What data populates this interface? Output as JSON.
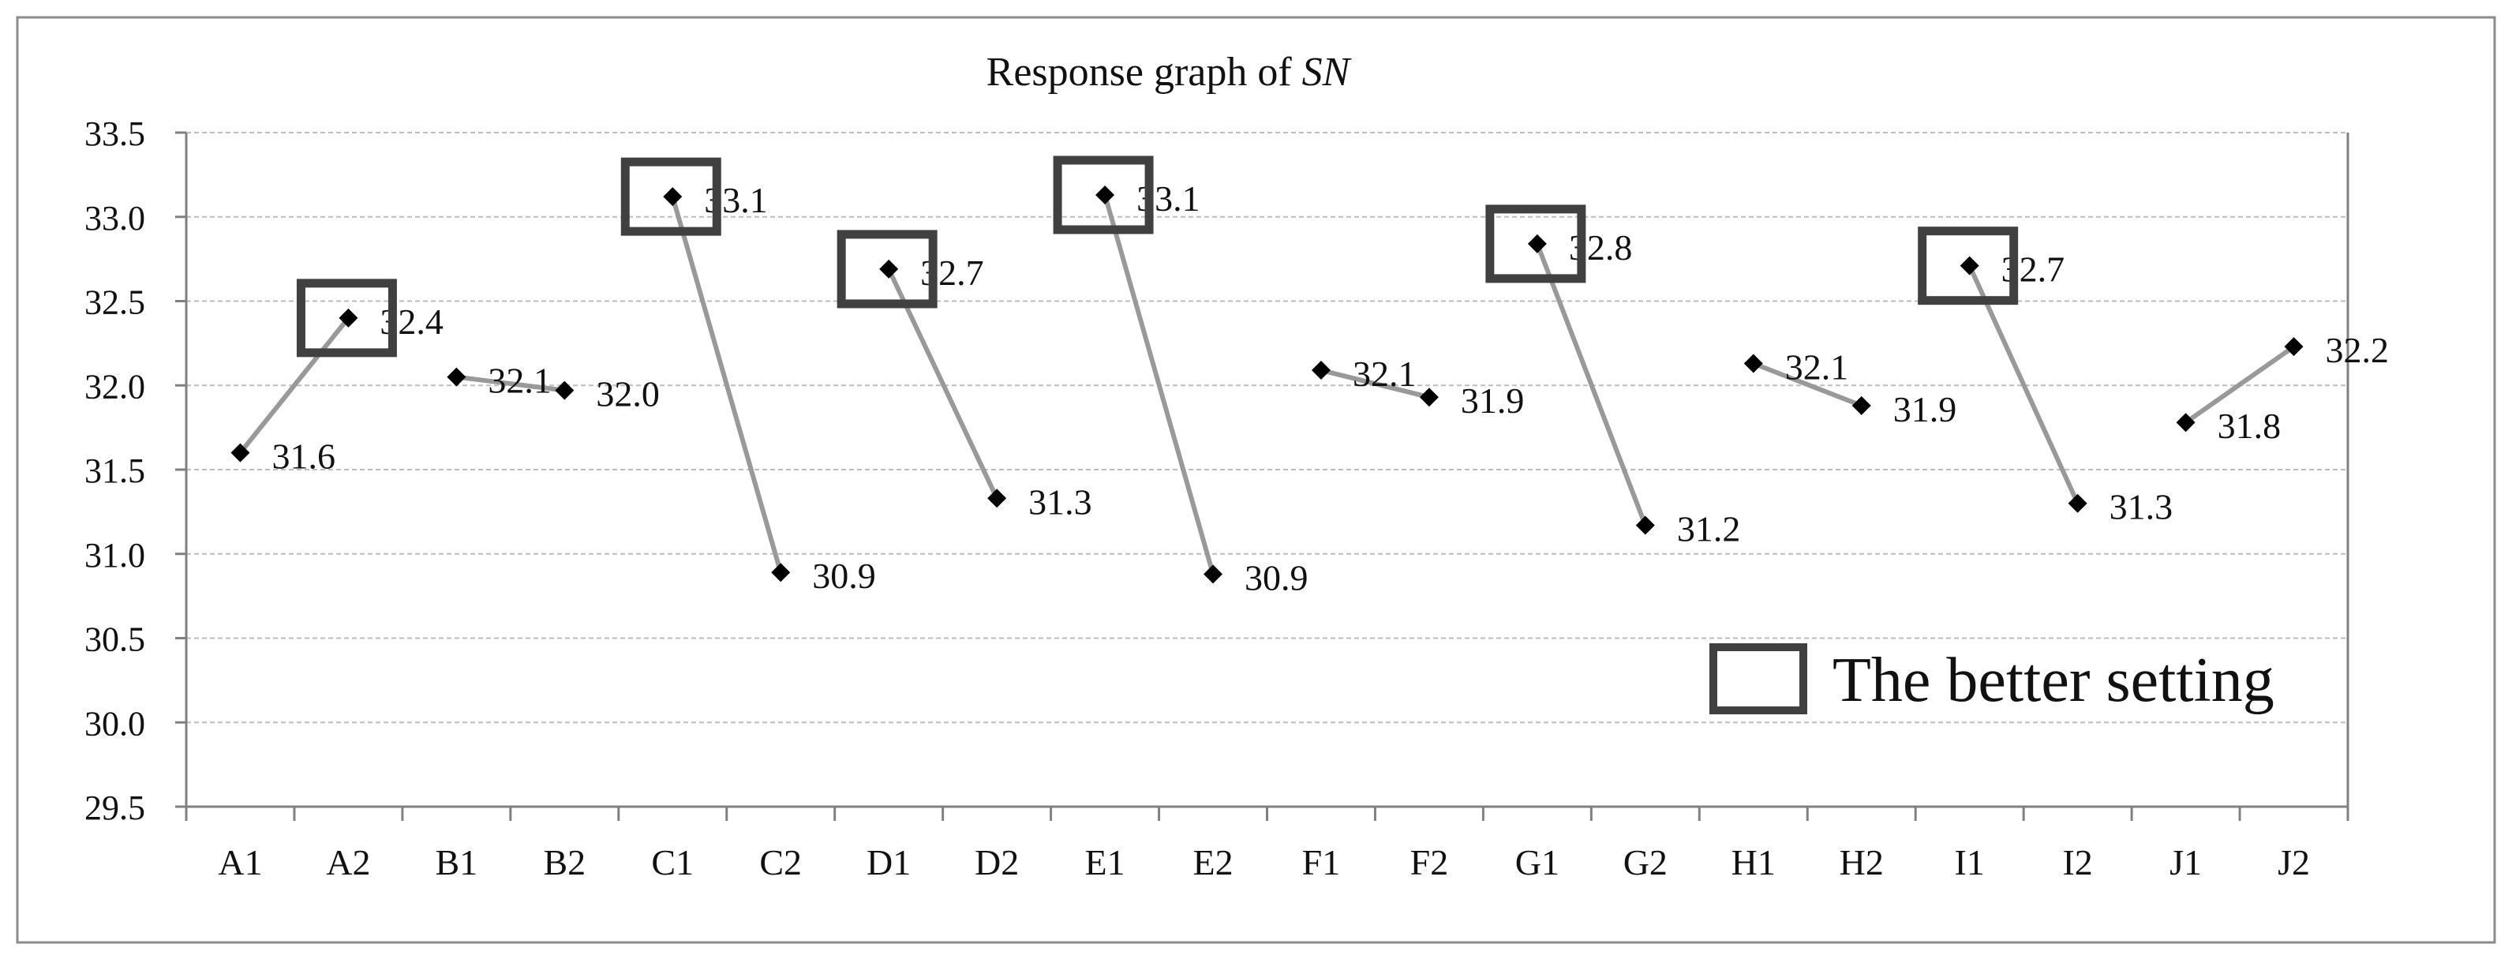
{
  "chart_data": {
    "type": "line",
    "title_prefix": "Response graph of ",
    "title_italic": "SN",
    "xlabel": "",
    "ylabel": "",
    "ylim": [
      29.5,
      33.5
    ],
    "yticks": [
      "29.5",
      "30.0",
      "30.5",
      "31.0",
      "31.5",
      "32.0",
      "32.5",
      "33.0",
      "33.5"
    ],
    "categories": [
      "A1",
      "A2",
      "B1",
      "B2",
      "C1",
      "C2",
      "D1",
      "D2",
      "E1",
      "E2",
      "F1",
      "F2",
      "G1",
      "G2",
      "H1",
      "H2",
      "I1",
      "I2",
      "J1",
      "J2"
    ],
    "series": [
      {
        "name": "A",
        "x": [
          "A1",
          "A2"
        ],
        "values": [
          31.6,
          32.4
        ],
        "labels": [
          "31.6",
          "32.4"
        ],
        "better": "A2"
      },
      {
        "name": "B",
        "x": [
          "B1",
          "B2"
        ],
        "values": [
          32.05,
          31.97
        ],
        "labels": [
          "32.1",
          "32.0"
        ],
        "better": ""
      },
      {
        "name": "C",
        "x": [
          "C1",
          "C2"
        ],
        "values": [
          33.12,
          30.89
        ],
        "labels": [
          "33.1",
          "30.9"
        ],
        "better": "C1"
      },
      {
        "name": "D",
        "x": [
          "D1",
          "D2"
        ],
        "values": [
          32.69,
          31.33
        ],
        "labels": [
          "32.7",
          "31.3"
        ],
        "better": "D1"
      },
      {
        "name": "E",
        "x": [
          "E1",
          "E2"
        ],
        "values": [
          33.13,
          30.88
        ],
        "labels": [
          "33.1",
          "30.9"
        ],
        "better": "E1"
      },
      {
        "name": "F",
        "x": [
          "F1",
          "F2"
        ],
        "values": [
          32.09,
          31.93
        ],
        "labels": [
          "32.1",
          "31.9"
        ],
        "better": ""
      },
      {
        "name": "G",
        "x": [
          "G1",
          "G2"
        ],
        "values": [
          32.84,
          31.17
        ],
        "labels": [
          "32.8",
          "31.2"
        ],
        "better": "G1"
      },
      {
        "name": "H",
        "x": [
          "H1",
          "H2"
        ],
        "values": [
          32.13,
          31.88
        ],
        "labels": [
          "32.1",
          "31.9"
        ],
        "better": ""
      },
      {
        "name": "I",
        "x": [
          "I1",
          "I2"
        ],
        "values": [
          32.71,
          31.3
        ],
        "labels": [
          "32.7",
          "31.3"
        ],
        "better": "I1"
      },
      {
        "name": "J",
        "x": [
          "J1",
          "J2"
        ],
        "values": [
          31.78,
          32.23
        ],
        "labels": [
          "31.8",
          "32.2"
        ],
        "better": ""
      }
    ],
    "legend": {
      "label": "The better setting",
      "placement": "bottom-right"
    },
    "grid": true,
    "colors": {
      "line": "#999999",
      "marker": "#000000",
      "box": "#404040",
      "grid": "#bdbdbd",
      "axis": "#808080",
      "text": "#111111"
    }
  }
}
